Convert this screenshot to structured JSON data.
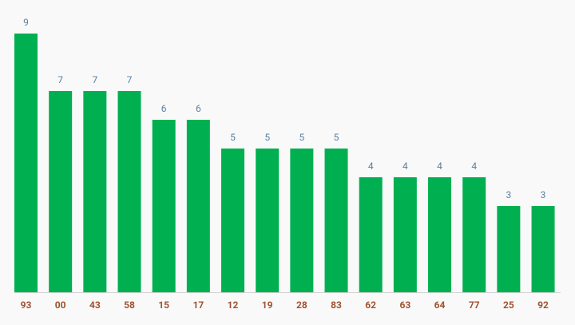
{
  "chart_data": {
    "type": "bar",
    "categories": [
      "93",
      "00",
      "43",
      "58",
      "15",
      "17",
      "12",
      "19",
      "28",
      "83",
      "62",
      "63",
      "64",
      "77",
      "25",
      "92"
    ],
    "values": [
      9,
      7,
      7,
      7,
      6,
      6,
      5,
      5,
      5,
      5,
      4,
      4,
      4,
      4,
      3,
      3
    ],
    "color": "#00b050"
  }
}
